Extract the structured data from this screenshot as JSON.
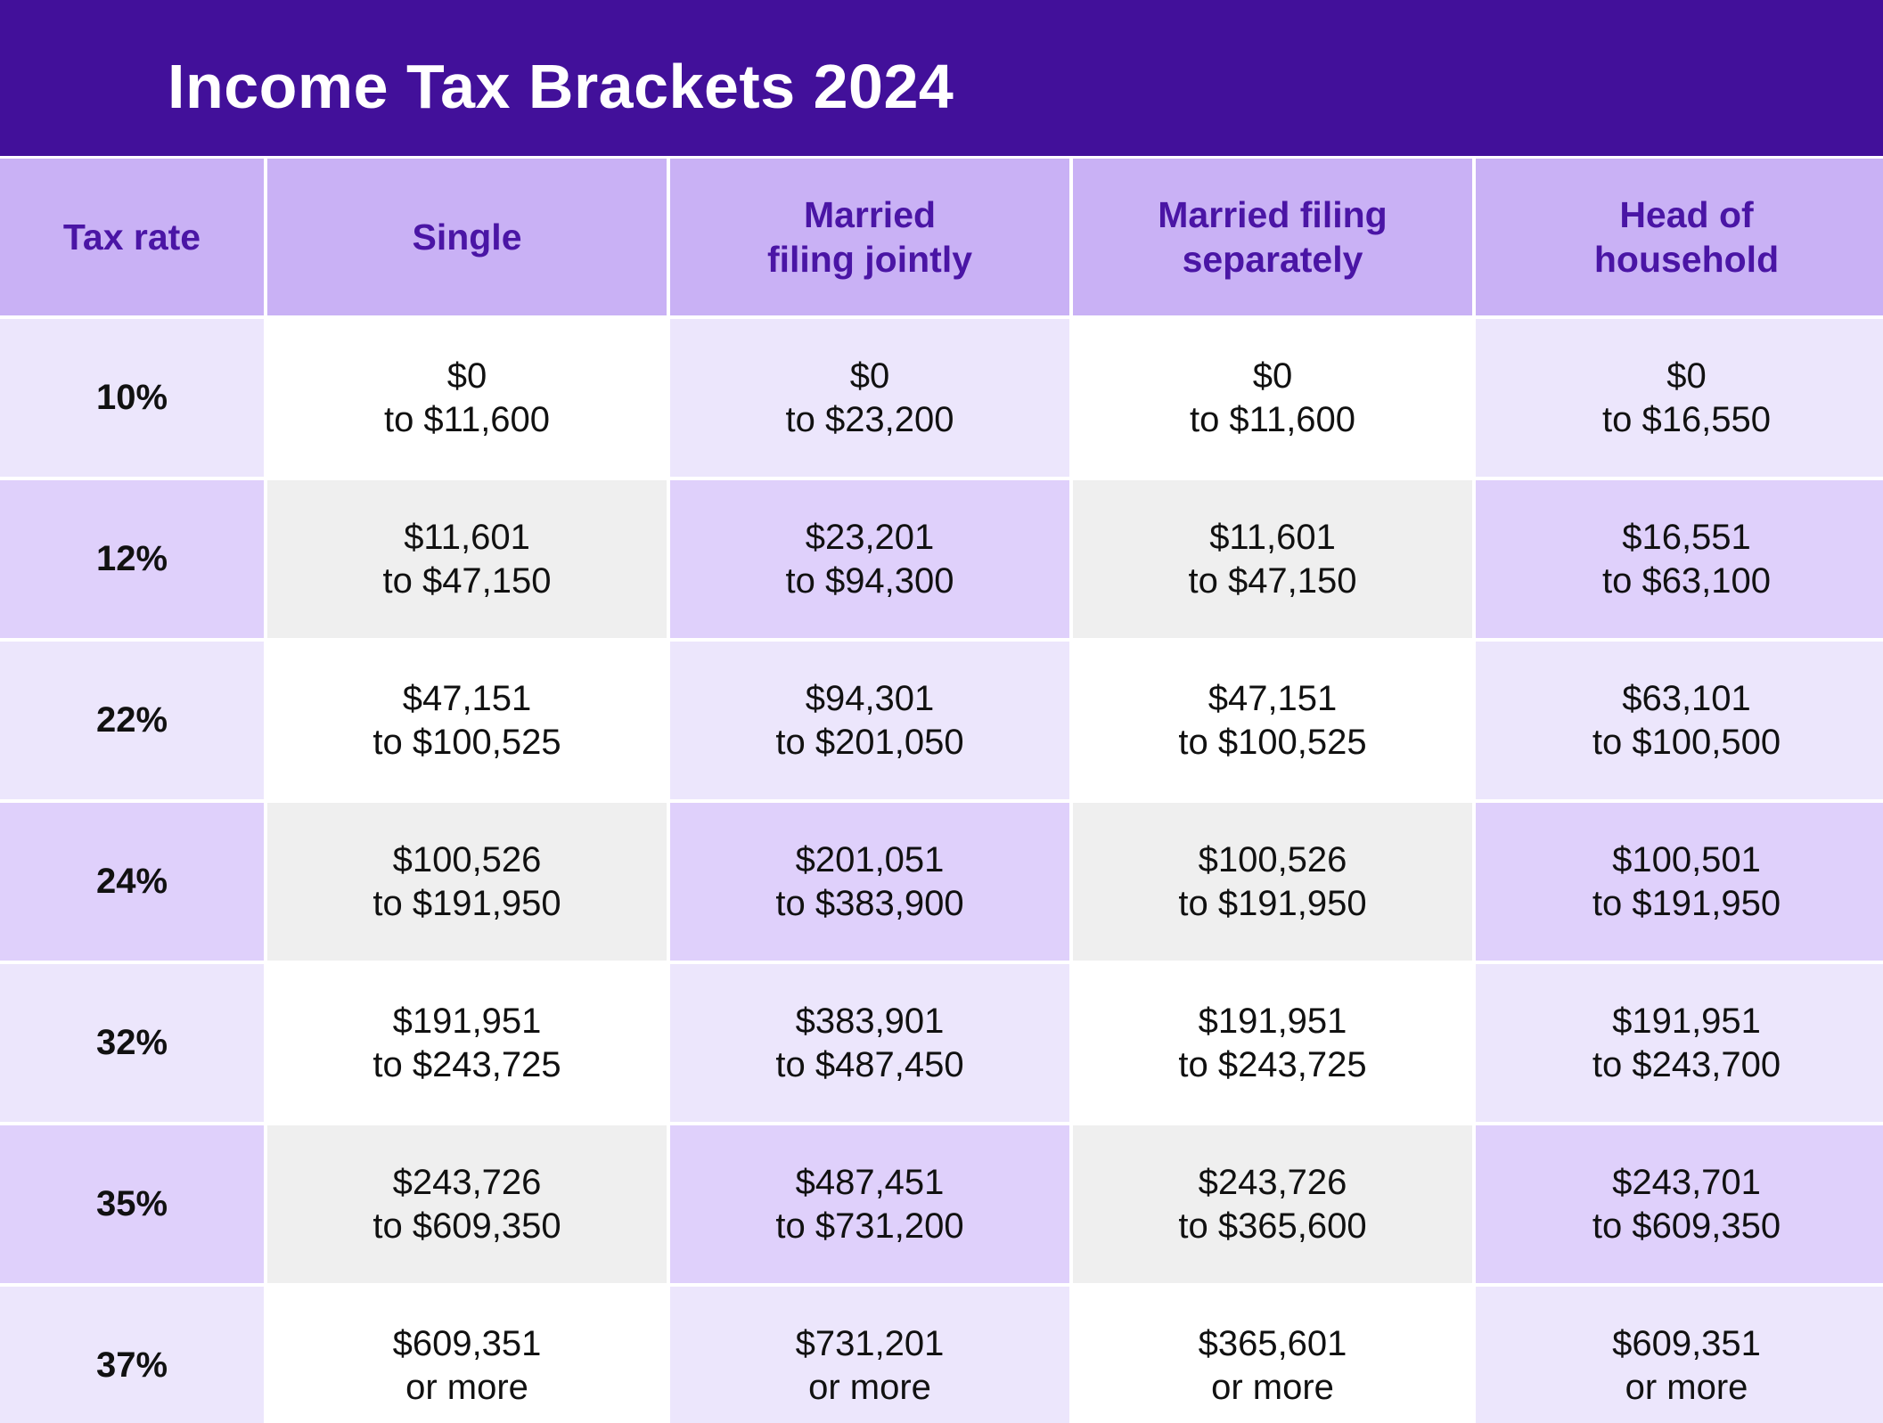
{
  "title": "Income Tax Brackets 2024",
  "colors": {
    "title_bar": "#42109a",
    "header_bg": "#c9b1f5",
    "header_text": "#4a15a5",
    "light_lavender": "#ece6fc",
    "medium_lavender": "#dfd0fb",
    "white": "#ffffff",
    "light_gray": "#efefef"
  },
  "chart_data": {
    "type": "table",
    "title": "Income Tax Brackets 2024",
    "columns": [
      {
        "label_lines": [
          "Tax rate"
        ]
      },
      {
        "label_lines": [
          "Single"
        ]
      },
      {
        "label_lines": [
          "Married",
          "filing jointly"
        ]
      },
      {
        "label_lines": [
          "Married filing",
          "separately"
        ]
      },
      {
        "label_lines": [
          "Head of",
          "household"
        ]
      }
    ],
    "rows": [
      {
        "rate": "10%",
        "cells": [
          [
            "$0",
            "to $11,600"
          ],
          [
            "$0",
            "to $23,200"
          ],
          [
            "$0",
            "to $11,600"
          ],
          [
            "$0",
            "to $16,550"
          ]
        ]
      },
      {
        "rate": "12%",
        "cells": [
          [
            "$11,601",
            "to $47,150"
          ],
          [
            "$23,201",
            "to $94,300"
          ],
          [
            "$11,601",
            "to $47,150"
          ],
          [
            "$16,551",
            "to $63,100"
          ]
        ]
      },
      {
        "rate": "22%",
        "cells": [
          [
            "$47,151",
            "to $100,525"
          ],
          [
            "$94,301",
            "to $201,050"
          ],
          [
            "$47,151",
            "to $100,525"
          ],
          [
            "$63,101",
            "to $100,500"
          ]
        ]
      },
      {
        "rate": "24%",
        "cells": [
          [
            "$100,526",
            "to $191,950"
          ],
          [
            "$201,051",
            "to $383,900"
          ],
          [
            "$100,526",
            "to $191,950"
          ],
          [
            "$100,501",
            "to $191,950"
          ]
        ]
      },
      {
        "rate": "32%",
        "cells": [
          [
            "$191,951",
            "to $243,725"
          ],
          [
            "$383,901",
            "to $487,450"
          ],
          [
            "$191,951",
            "to $243,725"
          ],
          [
            "$191,951",
            "to $243,700"
          ]
        ]
      },
      {
        "rate": "35%",
        "cells": [
          [
            "$243,726",
            "to $609,350"
          ],
          [
            "$487,451",
            "to $731,200"
          ],
          [
            "$243,726",
            "to $365,600"
          ],
          [
            "$243,701",
            "to $609,350"
          ]
        ]
      },
      {
        "rate": "37%",
        "cells": [
          [
            "$609,351",
            "or more"
          ],
          [
            "$731,201",
            "or more"
          ],
          [
            "$365,601",
            "or more"
          ],
          [
            "$609,351",
            "or more"
          ]
        ]
      }
    ]
  }
}
